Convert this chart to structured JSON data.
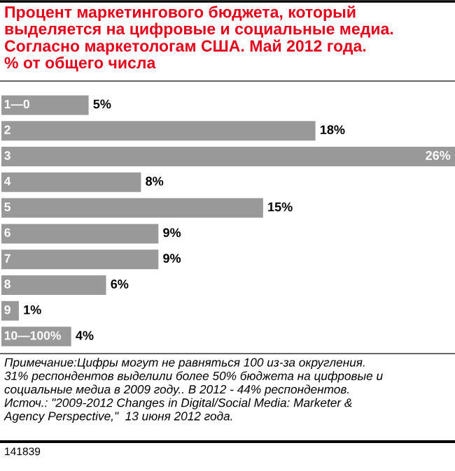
{
  "chart_data": {
    "type": "bar",
    "orientation": "horizontal",
    "title": "Процент маркетингового бюджета, который выделяется на цифровые и социальные медиа. Согласно маркетологам США. Май 2012 года.\n% от общего числа",
    "categories": [
      "1—0",
      "2",
      "3",
      "4",
      "5",
      "6",
      "7",
      "8",
      "9",
      "10—100%"
    ],
    "values": [
      5,
      18,
      26,
      8,
      15,
      9,
      9,
      6,
      1,
      4
    ],
    "value_labels": [
      "5%",
      "18%",
      "26%",
      "8%",
      "15%",
      "9%",
      "9%",
      "6%",
      "1%",
      "4%"
    ],
    "color": "#999999",
    "annotations": [
      "Примечание:Цифры могут не равняться 100 из-за округления.\n31% респондентов выделили более 50% бюджета на цифровые и\nсоциальные медиа в 2009 году.. В 2012 - 44% респондентов.\nИсточ.: \"2009-2012 Changes in Digital/Social Media: Marketer &\nAgency Perspective,\"  13 июня 2012 года.",
      "141839"
    ]
  }
}
